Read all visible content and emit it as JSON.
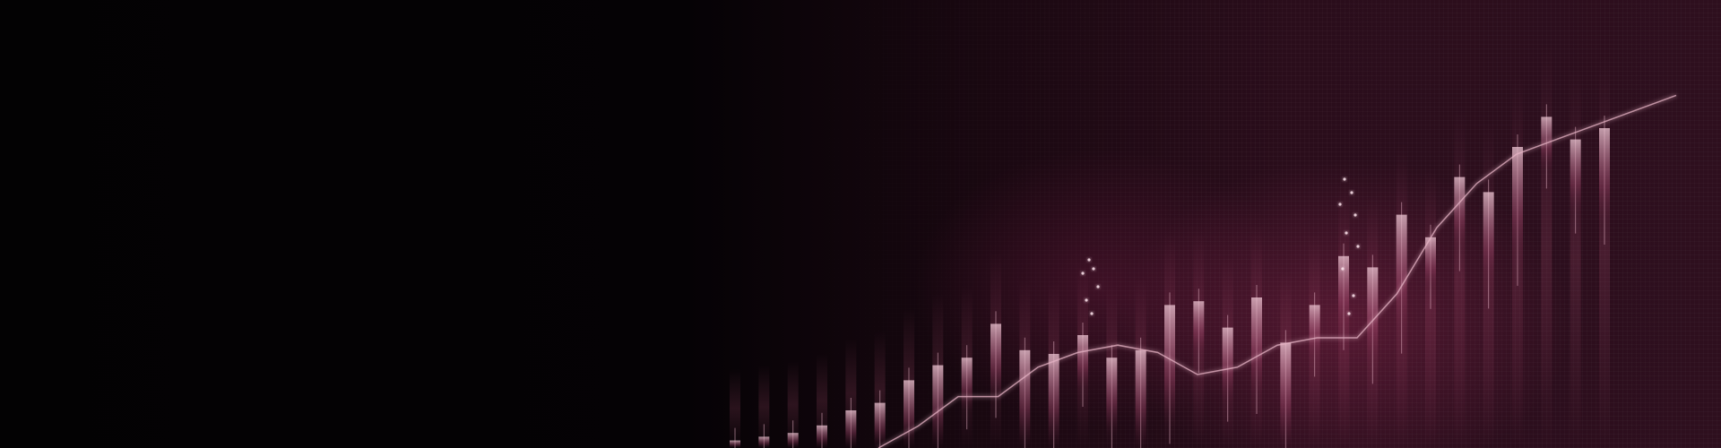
{
  "background": {
    "base_color": "#050205",
    "accent_color": "#8a2a52",
    "glow_color": "#c25a7e",
    "line_color": "#e6b3c4"
  },
  "chart_data": {
    "type": "candlestick",
    "title": "",
    "xlabel": "",
    "ylabel": "",
    "series": [
      {
        "values": [
          2,
          3,
          4,
          6,
          10,
          12,
          18,
          22,
          24,
          33,
          26,
          25,
          30,
          24,
          26,
          38,
          39,
          32,
          40,
          28,
          38,
          51,
          48,
          62,
          56,
          72,
          68,
          80,
          88,
          82,
          85
        ]
      }
    ],
    "trend_line": [
      0,
      6,
      14,
      14,
      22,
      26,
      28,
      26,
      20,
      22,
      28,
      30,
      30,
      42,
      60,
      72,
      80,
      84,
      88,
      92,
      96
    ]
  }
}
